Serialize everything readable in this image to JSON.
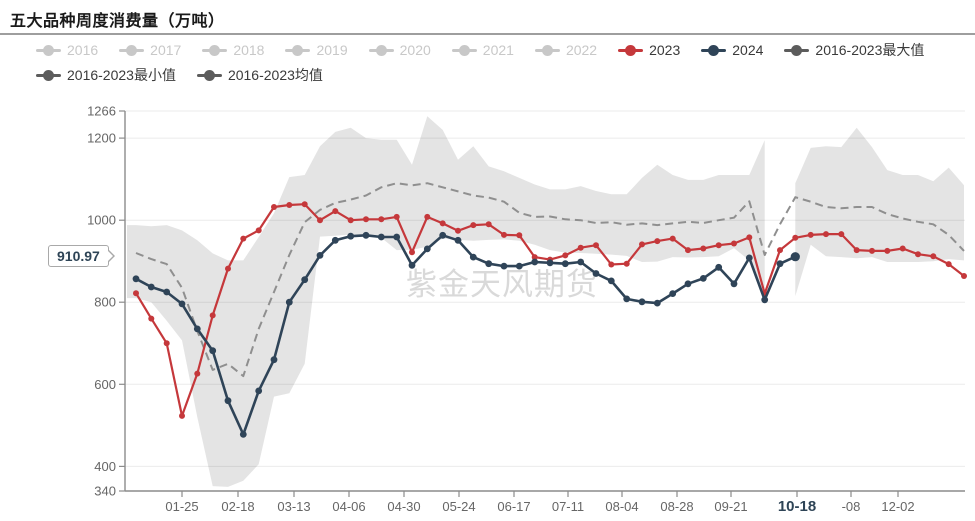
{
  "title": "五大品种周度消费量（万吨）",
  "watermark": "紫金天风期货",
  "current_value_badge": "910.97",
  "colors": {
    "accent_2023": "#c5383b",
    "accent_2024": "#2f4458",
    "band": "#e4e4e4",
    "mean_line": "#8f8f8f",
    "legend_disabled": "#c8c8c8",
    "legend_stat": "#5c5c5c",
    "axis": "#8c8c8c",
    "tick_label": "#666666",
    "highlight_tick": "#2e4456",
    "watermark_color": "#d9d9d9"
  },
  "legend": {
    "rows": [
      [
        {
          "label": "2016",
          "state": "disabled"
        },
        {
          "label": "2017",
          "state": "disabled"
        },
        {
          "label": "2018",
          "state": "disabled"
        },
        {
          "label": "2019",
          "state": "disabled"
        },
        {
          "label": "2020",
          "state": "disabled"
        },
        {
          "label": "2021",
          "state": "disabled"
        },
        {
          "label": "2022",
          "state": "disabled"
        },
        {
          "label": "2023",
          "state": "active",
          "color": "#c5383b"
        },
        {
          "label": "2024",
          "state": "active",
          "color": "#2f4458"
        },
        {
          "label": "2016-2023最大值",
          "state": "active",
          "color": "#5c5c5c"
        }
      ],
      [
        {
          "label": "2016-2023最小值",
          "state": "active",
          "color": "#5c5c5c"
        },
        {
          "label": "2016-2023均值",
          "state": "active",
          "color": "#5c5c5c"
        }
      ]
    ]
  },
  "chart_data": {
    "type": "line",
    "title": "五大品种周度消费量（万吨）",
    "ylabel": "万吨",
    "ylim": [
      340,
      1266
    ],
    "grid": true,
    "legend_position": "top",
    "y_ticks": [
      1266,
      1200,
      1000,
      800,
      600,
      400,
      340
    ],
    "x_ticks": [
      {
        "label": "01-25",
        "pos": 0.0679
      },
      {
        "label": "02-18",
        "pos": 0.1345
      },
      {
        "label": "03-13",
        "pos": 0.2012
      },
      {
        "label": "04-06",
        "pos": 0.2667
      },
      {
        "label": "04-30",
        "pos": 0.3321
      },
      {
        "label": "05-24",
        "pos": 0.3976
      },
      {
        "label": "06-17",
        "pos": 0.4631
      },
      {
        "label": "07-11",
        "pos": 0.5274
      },
      {
        "label": "08-04",
        "pos": 0.5917
      },
      {
        "label": "08-28",
        "pos": 0.6571
      },
      {
        "label": "09-21",
        "pos": 0.7214
      },
      {
        "label": "10-18",
        "pos": 0.8,
        "bold": true
      },
      {
        "label": "-08",
        "pos": 0.8643
      },
      {
        "label": "12-02",
        "pos": 0.9202
      }
    ],
    "hidden_series": [
      "2016",
      "2017",
      "2018",
      "2019",
      "2020",
      "2021",
      "2022"
    ],
    "series": [
      {
        "name": "2016-2023最大值",
        "role": "band_upper",
        "values": [
          988,
          985,
          988,
          975,
          951,
          919,
          902,
          902,
          959,
          1017,
          1105,
          1110,
          1180,
          1215,
          1225,
          1200,
          1196,
          1196,
          1135,
          1253,
          1220,
          1147,
          1180,
          1131,
          1119,
          1103,
          1087,
          1075,
          1075,
          1083,
          1071,
          1063,
          1063,
          1103,
          1135,
          1110,
          1098,
          1098,
          1110,
          1110,
          1110,
          1195,
          null,
          1090,
          1176,
          1180,
          1178,
          1225,
          1178,
          1122,
          1110,
          1110,
          1095,
          1128,
          1085
        ]
      },
      {
        "name": "2016-2023最小值",
        "role": "band_lower",
        "values": [
          810,
          800,
          755,
          707,
          520,
          352,
          350,
          365,
          405,
          570,
          578,
          650,
          960,
          962,
          965,
          963,
          957,
          927,
          928,
          935,
          955,
          952,
          950,
          952,
          953,
          950,
          940,
          927,
          921,
          920,
          918,
          916,
          913,
          898,
          899,
          910,
          909,
          910,
          912,
          932,
          902,
          820,
          null,
          815,
          940,
          912,
          910,
          907,
          910,
          898,
          898,
          898,
          900,
          905,
          902
        ]
      },
      {
        "name": "2016-2023均值",
        "role": "mean_dashed",
        "values": [
          920,
          905,
          893,
          835,
          730,
          635,
          650,
          620,
          735,
          825,
          915,
          995,
          1025,
          1042,
          1050,
          1060,
          1080,
          1090,
          1085,
          1090,
          1080,
          1070,
          1060,
          1055,
          1045,
          1018,
          1008,
          1009,
          1002,
          1000,
          993,
          995,
          989,
          992,
          988,
          992,
          996,
          993,
          1000,
          1006,
          1046,
          915,
          990,
          1056,
          1045,
          1032,
          1029,
          1032,
          1032,
          1015,
          1004,
          996,
          990,
          964,
          925
        ]
      },
      {
        "name": "2023",
        "role": "line",
        "color": "#c5383b",
        "values": [
          822,
          760,
          700,
          523,
          626,
          768,
          882,
          955,
          975,
          1032,
          1037,
          1039,
          1000,
          1022,
          1000,
          1002,
          1002,
          1008,
          922,
          1008,
          992,
          974,
          988,
          990,
          964,
          963,
          910,
          904,
          914,
          933,
          939,
          892,
          894,
          941,
          949,
          955,
          927,
          931,
          939,
          943,
          958,
          821,
          927,
          957,
          964,
          966,
          966,
          927,
          925,
          925,
          931,
          917,
          912,
          893,
          864
        ]
      },
      {
        "name": "2024",
        "role": "line_current",
        "color": "#2f4458",
        "last_value_label": "910.97",
        "values": [
          857,
          837,
          825,
          796,
          735,
          682,
          560,
          478,
          584,
          660,
          800,
          855,
          914,
          951,
          961,
          963,
          959,
          959,
          890,
          930,
          963,
          951,
          910,
          894,
          888,
          888,
          898,
          896,
          894,
          898,
          870,
          852,
          808,
          801,
          798,
          821,
          845,
          858,
          885,
          845,
          908,
          806,
          894,
          910.97
        ]
      }
    ]
  }
}
